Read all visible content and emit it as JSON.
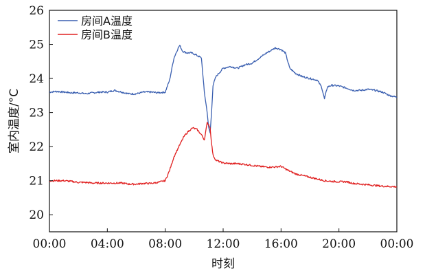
{
  "chart_data": {
    "type": "line",
    "title": "",
    "xlabel": "时刻",
    "ylabel": "室内温度/°C",
    "x_ticks": [
      "00:00",
      "04:00",
      "08:00",
      "12:00",
      "16:00",
      "20:00",
      "00:00"
    ],
    "x_tick_hours": [
      0,
      4,
      8,
      12,
      16,
      20,
      24
    ],
    "xlim": [
      0,
      24
    ],
    "ylim": [
      19.5,
      26
    ],
    "y_ticks": [
      20,
      21,
      22,
      23,
      24,
      25,
      26
    ],
    "grid": false,
    "legend_position": "top-left",
    "x_unit": "hour",
    "series": [
      {
        "name": "房间A温度",
        "color": "#3a5fb0",
        "x": [
          0,
          0.5,
          1,
          1.5,
          2,
          2.5,
          3,
          3.5,
          4,
          4.5,
          5,
          5.5,
          6,
          6.5,
          7,
          7.5,
          8,
          8.3,
          8.6,
          8.9,
          9.0,
          9.2,
          9.5,
          9.8,
          10.0,
          10.3,
          10.5,
          10.7,
          10.9,
          11.0,
          11.1,
          11.2,
          11.3,
          11.5,
          11.8,
          12.0,
          12.5,
          13.0,
          13.5,
          14.0,
          14.5,
          15.0,
          15.3,
          15.6,
          16.0,
          16.3,
          16.6,
          17.0,
          17.5,
          18.0,
          18.5,
          18.8,
          19.0,
          19.2,
          19.5,
          20.0,
          20.5,
          21.0,
          21.5,
          22.0,
          22.5,
          23.0,
          23.5,
          24.0
        ],
        "y": [
          23.6,
          23.62,
          23.6,
          23.58,
          23.58,
          23.55,
          23.58,
          23.6,
          23.6,
          23.65,
          23.6,
          23.55,
          23.55,
          23.6,
          23.6,
          23.58,
          23.6,
          23.95,
          24.6,
          24.9,
          24.97,
          24.8,
          24.75,
          24.75,
          24.72,
          24.65,
          24.6,
          23.6,
          23.0,
          22.55,
          22.4,
          23.0,
          23.8,
          24.05,
          24.2,
          24.3,
          24.35,
          24.3,
          24.4,
          24.45,
          24.6,
          24.75,
          24.82,
          24.9,
          24.85,
          24.75,
          24.3,
          24.15,
          24.05,
          24.0,
          23.95,
          23.75,
          23.4,
          23.75,
          23.8,
          23.78,
          23.72,
          23.65,
          23.65,
          23.68,
          23.65,
          23.6,
          23.5,
          23.45
        ]
      },
      {
        "name": "房间B温度",
        "color": "#e02020",
        "x": [
          0,
          0.5,
          1,
          1.5,
          2,
          2.5,
          3,
          3.5,
          4,
          4.5,
          5,
          5.5,
          6,
          6.5,
          7,
          7.5,
          8,
          8.3,
          8.6,
          9.0,
          9.3,
          9.6,
          9.9,
          10.2,
          10.5,
          10.7,
          10.9,
          11.0,
          11.1,
          11.2,
          11.3,
          11.5,
          11.8,
          12.0,
          12.5,
          13.0,
          13.5,
          14.0,
          14.5,
          15.0,
          15.5,
          16.0,
          16.5,
          17.0,
          17.5,
          18.0,
          18.5,
          19.0,
          19.5,
          20.0,
          20.5,
          21.0,
          21.5,
          22.0,
          22.5,
          23.0,
          23.5,
          24.0
        ],
        "y": [
          21.0,
          21.0,
          21.0,
          20.98,
          20.95,
          20.95,
          20.93,
          20.93,
          20.93,
          20.93,
          20.93,
          20.9,
          20.9,
          20.92,
          20.92,
          20.95,
          21.0,
          21.3,
          21.7,
          22.05,
          22.3,
          22.45,
          22.55,
          22.5,
          22.35,
          22.2,
          22.7,
          22.65,
          22.55,
          22.1,
          21.75,
          21.6,
          21.55,
          21.52,
          21.5,
          21.5,
          21.48,
          21.45,
          21.42,
          21.4,
          21.4,
          21.42,
          21.3,
          21.2,
          21.15,
          21.1,
          21.05,
          21.0,
          20.98,
          20.97,
          20.97,
          20.92,
          20.9,
          20.88,
          20.86,
          20.84,
          20.83,
          20.82
        ]
      }
    ]
  }
}
